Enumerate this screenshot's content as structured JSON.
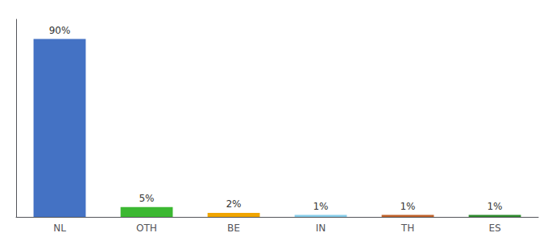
{
  "chart_data": {
    "type": "bar",
    "categories": [
      "NL",
      "OTH",
      "BE",
      "IN",
      "TH",
      "ES"
    ],
    "values": [
      90,
      5,
      2,
      1,
      1,
      1
    ],
    "value_labels": [
      "90%",
      "5%",
      "2%",
      "1%",
      "1%",
      "1%"
    ],
    "colors": [
      "#4472c4",
      "#3cb832",
      "#f0a500",
      "#87ceeb",
      "#c0622b",
      "#2e8b2e"
    ],
    "ylim": [
      0,
      100
    ],
    "grid": false,
    "data_labels": true,
    "tick_labels": "x"
  }
}
